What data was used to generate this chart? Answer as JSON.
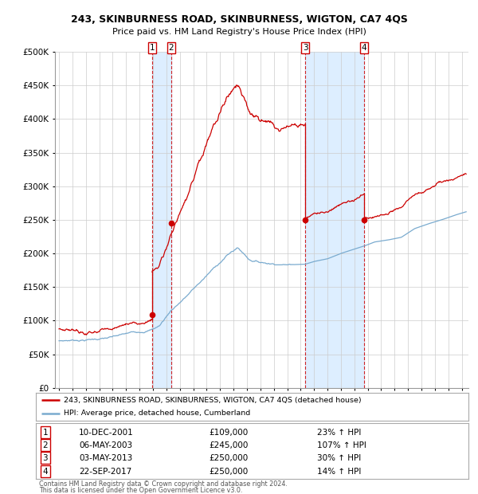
{
  "title1": "243, SKINBURNESS ROAD, SKINBURNESS, WIGTON, CA7 4QS",
  "title2": "Price paid vs. HM Land Registry's House Price Index (HPI)",
  "ylim": [
    0,
    500000
  ],
  "yticks": [
    0,
    50000,
    100000,
    150000,
    200000,
    250000,
    300000,
    350000,
    400000,
    450000,
    500000
  ],
  "ytick_labels": [
    "£0",
    "£50K",
    "£100K",
    "£150K",
    "£200K",
    "£250K",
    "£300K",
    "£350K",
    "£400K",
    "£450K",
    "£500K"
  ],
  "xlim_start": 1994.7,
  "xlim_end": 2025.5,
  "transactions": [
    {
      "num": 1,
      "date": "10-DEC-2001",
      "date_x": 2001.94,
      "price": 109000,
      "pct": "23%",
      "dir": "↑"
    },
    {
      "num": 2,
      "date": "06-MAY-2003",
      "date_x": 2003.35,
      "price": 245000,
      "pct": "107%",
      "dir": "↑"
    },
    {
      "num": 3,
      "date": "03-MAY-2013",
      "date_x": 2013.34,
      "price": 250000,
      "pct": "30%",
      "dir": "↑"
    },
    {
      "num": 4,
      "date": "22-SEP-2017",
      "date_x": 2017.73,
      "price": 250000,
      "pct": "14%",
      "dir": "↑"
    }
  ],
  "red_line_color": "#cc0000",
  "blue_line_color": "#7aabcf",
  "dot_color": "#cc0000",
  "shade_color": "#ddeeff",
  "dashed_color": "#cc0000",
  "grid_color": "#cccccc",
  "background_color": "#ffffff",
  "legend_label_red": "243, SKINBURNESS ROAD, SKINBURNESS, WIGTON, CA7 4QS (detached house)",
  "legend_label_blue": "HPI: Average price, detached house, Cumberland",
  "footer1": "Contains HM Land Registry data © Crown copyright and database right 2024.",
  "footer2": "This data is licensed under the Open Government Licence v3.0."
}
